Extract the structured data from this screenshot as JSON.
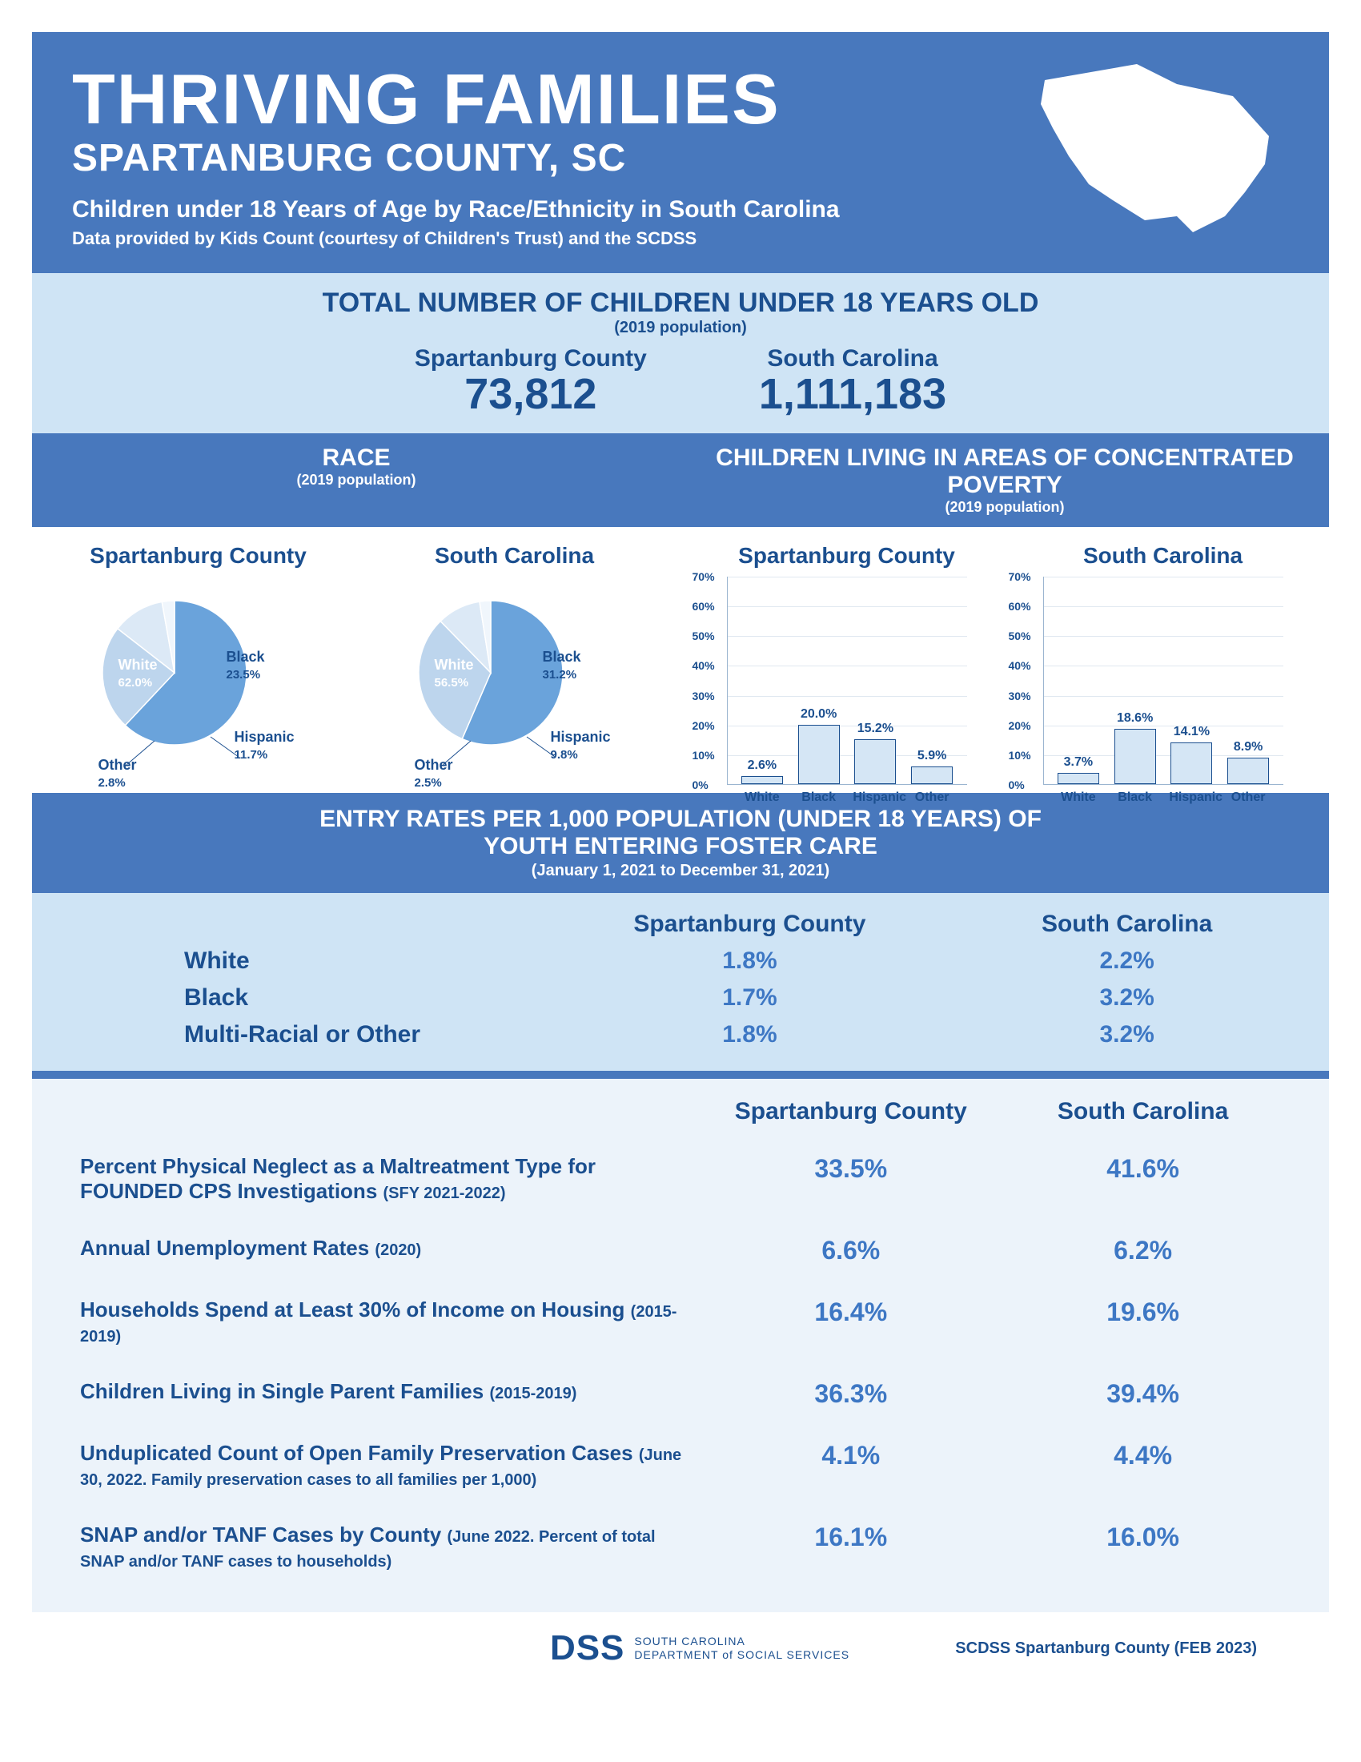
{
  "header": {
    "title": "THRIVING FAMILIES",
    "county": "SPARTANBURG COUNTY, SC",
    "sub1": "Children under 18 Years of Age by Race/Ethnicity in South Carolina",
    "sub2": "Data provided by Kids Count (courtesy of Children's Trust) and the SCDSS"
  },
  "total": {
    "title": "TOTAL NUMBER OF CHILDREN UNDER 18 YEARS OLD",
    "subtitle": "(2019 population)",
    "county_label": "Spartanburg County",
    "county_value": "73,812",
    "state_label": "South Carolina",
    "state_value": "1,111,183"
  },
  "race": {
    "title": "RACE",
    "subtitle": "(2019 population)",
    "county_label": "Spartanburg County",
    "state_label": "South Carolina",
    "county_pie": {
      "slices": [
        {
          "label": "White",
          "pct": 62.0,
          "color": "#6aa3db"
        },
        {
          "label": "Black",
          "pct": 23.5,
          "color": "#bdd5ed"
        },
        {
          "label": "Hispanic",
          "pct": 11.7,
          "color": "#dce9f6"
        },
        {
          "label": "Other",
          "pct": 2.8,
          "color": "#f0f6fc"
        }
      ]
    },
    "state_pie": {
      "slices": [
        {
          "label": "White",
          "pct": 56.5,
          "color": "#6aa3db"
        },
        {
          "label": "Black",
          "pct": 31.2,
          "color": "#bdd5ed"
        },
        {
          "label": "Hispanic",
          "pct": 9.8,
          "color": "#dce9f6"
        },
        {
          "label": "Other",
          "pct": 2.5,
          "color": "#f0f6fc"
        }
      ]
    }
  },
  "poverty": {
    "title": "CHILDREN LIVING IN AREAS OF CONCENTRATED POVERTY",
    "subtitle": "(2019 population)",
    "county_label": "Spartanburg County",
    "state_label": "South Carolina",
    "ymax": 70,
    "ytick_step": 10,
    "bar_fill": "#d5e6f5",
    "bar_border": "#1b4f8f",
    "categories": [
      "White",
      "Black",
      "Hispanic",
      "Other"
    ],
    "county_values": [
      2.6,
      20.0,
      15.2,
      5.9
    ],
    "state_values": [
      3.7,
      18.6,
      14.1,
      8.9
    ]
  },
  "entry": {
    "title1": "ENTRY RATES PER 1,000 POPULATION (UNDER 18 YEARS) OF",
    "title2": "YOUTH ENTERING FOSTER CARE",
    "subtitle": "(January 1, 2021 to December 31, 2021)",
    "col_county": "Spartanburg County",
    "col_state": "South Carolina",
    "rows": [
      {
        "label": "White",
        "county": "1.8%",
        "state": "2.2%"
      },
      {
        "label": "Black",
        "county": "1.7%",
        "state": "3.2%"
      },
      {
        "label": "Multi-Racial or Other",
        "county": "1.8%",
        "state": "3.2%"
      }
    ]
  },
  "stats": {
    "col_county": "Spartanburg County",
    "col_state": "South Carolina",
    "rows": [
      {
        "label": "Percent Physical Neglect as a Maltreatment Type for FOUNDED CPS Investigations",
        "detail": "(SFY 2021-2022)",
        "county": "33.5%",
        "state": "41.6%"
      },
      {
        "label": "Annual Unemployment Rates",
        "detail": "(2020)",
        "county": "6.6%",
        "state": "6.2%"
      },
      {
        "label": "Households Spend at Least 30% of Income on Housing",
        "detail": "(2015-2019)",
        "county": "16.4%",
        "state": "19.6%"
      },
      {
        "label": "Children Living in Single Parent Families",
        "detail": "(2015-2019)",
        "county": "36.3%",
        "state": "39.4%"
      },
      {
        "label": "Unduplicated Count of Open Family Preservation Cases",
        "detail": "(June 30, 2022. Family preservation cases to all families per 1,000)",
        "county": "4.1%",
        "state": "4.4%"
      },
      {
        "label": "SNAP and/or TANF Cases by County",
        "detail": "(June 2022. Percent of total SNAP and/or TANF cases to households)",
        "county": "16.1%",
        "state": "16.0%"
      }
    ]
  },
  "footer": {
    "logo_text": "DSS",
    "dept_line1": "SOUTH CAROLINA",
    "dept_line2": "DEPARTMENT of SOCIAL SERVICES",
    "date": "SCDSS Spartanburg County (FEB 2023)"
  },
  "colors": {
    "primary": "#4878bd",
    "light": "#cfe4f5",
    "text_dark": "#1b4f8f",
    "text_accent": "#3d77c4"
  }
}
